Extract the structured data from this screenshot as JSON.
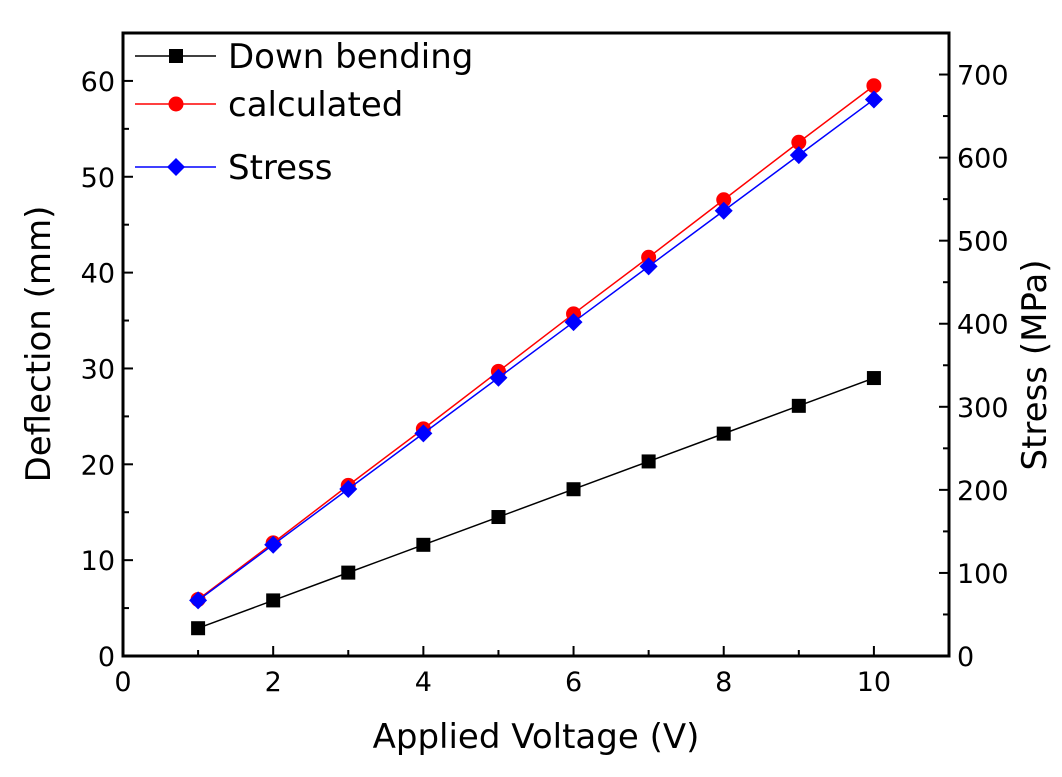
{
  "chart_data": {
    "type": "line",
    "x": [
      1,
      2,
      3,
      4,
      5,
      6,
      7,
      8,
      9,
      10
    ],
    "xlabel": "Applied Voltage (V)",
    "ylabel": "Deflection (mm)",
    "y2label": "Stress (MPa)",
    "xlim": [
      0,
      11
    ],
    "ylim": [
      0,
      65
    ],
    "y2lim": [
      0,
      750
    ],
    "xticks": [
      "0",
      "2",
      "4",
      "6",
      "8",
      "10"
    ],
    "yticks": [
      "0",
      "10",
      "20",
      "30",
      "40",
      "50",
      "60"
    ],
    "y2ticks": [
      "0",
      "100",
      "200",
      "300",
      "400",
      "500",
      "600",
      "700"
    ],
    "grid": false,
    "legend_position": "top-left",
    "series": [
      {
        "name": "Down bending",
        "axis": "left",
        "marker": "square",
        "color": "#000000",
        "values": [
          2.9,
          5.8,
          8.7,
          11.6,
          14.5,
          17.4,
          20.3,
          23.2,
          26.1,
          29.0
        ]
      },
      {
        "name": "calculated",
        "axis": "left",
        "marker": "circle",
        "color": "#ff0000",
        "values": [
          5.9,
          11.8,
          17.8,
          23.7,
          29.7,
          35.7,
          41.6,
          47.6,
          53.6,
          59.5
        ]
      },
      {
        "name": "Stress",
        "axis": "right",
        "marker": "diamond",
        "color": "#0000ff",
        "values": [
          67,
          134,
          201,
          268,
          335,
          402,
          469,
          536,
          603,
          670
        ]
      }
    ]
  }
}
